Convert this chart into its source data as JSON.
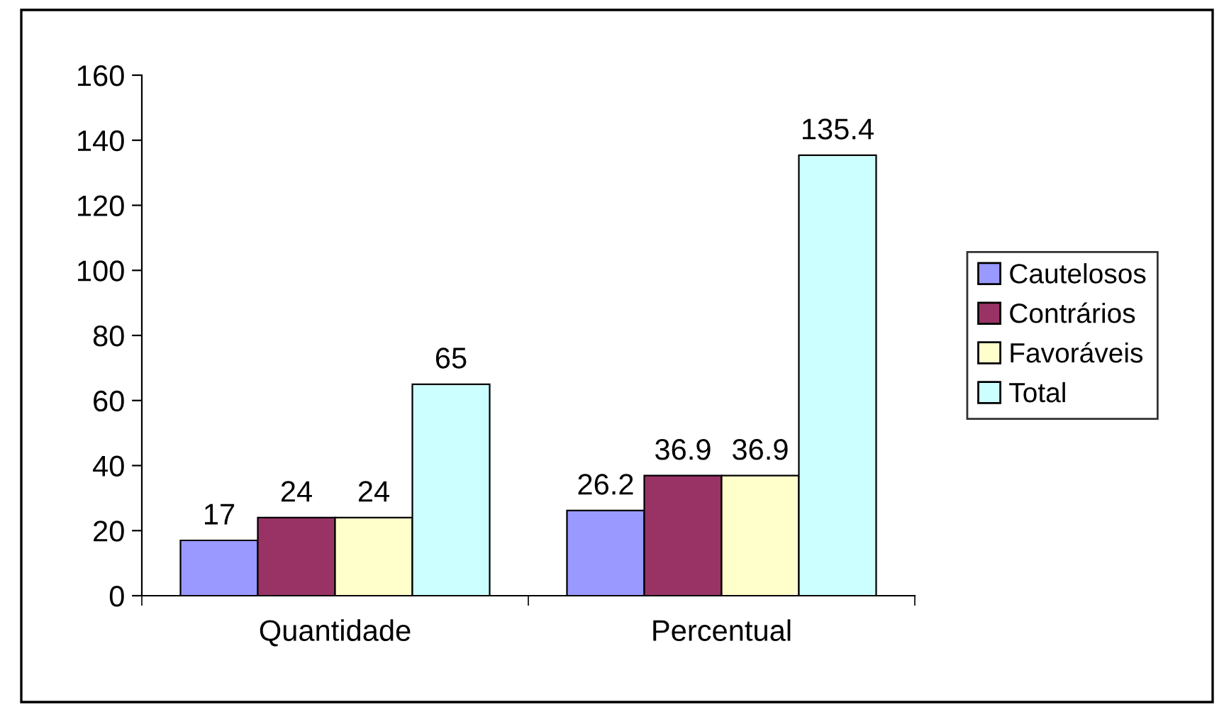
{
  "chart_data": {
    "type": "bar",
    "categories": [
      "Quantidade",
      "Percentual"
    ],
    "series": [
      {
        "name": "Cautelosos",
        "color": "#9999ff",
        "values": [
          17,
          26.2
        ]
      },
      {
        "name": "Contrários",
        "color": "#993366",
        "values": [
          24,
          36.9
        ]
      },
      {
        "name": "Favoráveis",
        "color": "#ffffcc",
        "values": [
          24,
          36.9
        ]
      },
      {
        "name": "Total",
        "color": "#ccffff",
        "values": [
          65,
          135.4
        ]
      }
    ],
    "ylim": [
      0,
      160
    ],
    "yticks": [
      0,
      20,
      40,
      60,
      80,
      100,
      120,
      140,
      160
    ],
    "data_labels": true,
    "legend": "right",
    "grid": false
  }
}
